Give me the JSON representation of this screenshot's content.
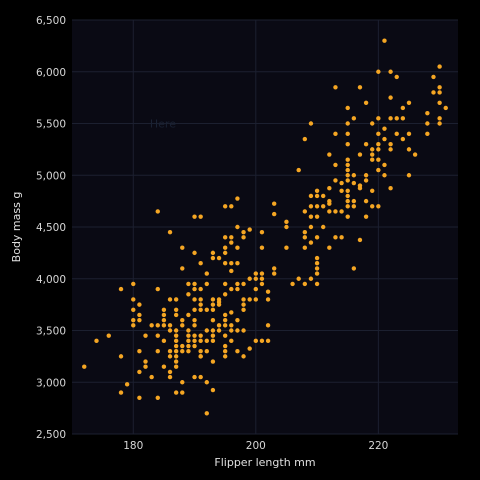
{
  "chart_data": {
    "type": "scatter",
    "title": "",
    "xlabel": "Flipper length mm",
    "ylabel": "Body mass g",
    "xlim": [
      170,
      233
    ],
    "ylim": [
      2500,
      6500
    ],
    "xticks": [
      180,
      200,
      220
    ],
    "yticks": [
      2500,
      3000,
      3500,
      4000,
      4500,
      5000,
      5500,
      6000,
      6500
    ],
    "xtick_labels": [
      "180",
      "200",
      "220"
    ],
    "ytick_labels": [
      "2,500",
      "3,000",
      "3,500",
      "4,000",
      "4,500",
      "5,000",
      "5,500",
      "6,000",
      "6,500"
    ],
    "grid": true,
    "annotation": {
      "text": "Here",
      "x": 185,
      "y": 5500
    },
    "colors": {
      "background": "#000000",
      "plot_background": "#0a0a14",
      "grid": "#1c2030",
      "point": "#f5a623"
    },
    "points": [
      [
        172,
        3150
      ],
      [
        174,
        3400
      ],
      [
        176,
        3450
      ],
      [
        178,
        3250
      ],
      [
        178,
        3900
      ],
      [
        178,
        2900
      ],
      [
        179,
        2980
      ],
      [
        180,
        3950
      ],
      [
        180,
        3800
      ],
      [
        180,
        3700
      ],
      [
        180,
        3600
      ],
      [
        180,
        3550
      ],
      [
        181,
        3750
      ],
      [
        181,
        3650
      ],
      [
        181,
        3600
      ],
      [
        181,
        3300
      ],
      [
        181,
        3100
      ],
      [
        181,
        2850
      ],
      [
        182,
        3200
      ],
      [
        182,
        3450
      ],
      [
        182,
        3150
      ],
      [
        183,
        3550
      ],
      [
        183,
        3050
      ],
      [
        184,
        3550
      ],
      [
        184,
        4650
      ],
      [
        184,
        3900
      ],
      [
        184,
        3450
      ],
      [
        184,
        2850
      ],
      [
        184,
        3300
      ],
      [
        185,
        3650
      ],
      [
        185,
        3550
      ],
      [
        185,
        3700
      ],
      [
        185,
        3600
      ],
      [
        185,
        3400
      ],
      [
        185,
        3150
      ],
      [
        186,
        4450
      ],
      [
        186,
        3800
      ],
      [
        186,
        3550
      ],
      [
        186,
        3500
      ],
      [
        186,
        3300
      ],
      [
        186,
        3250
      ],
      [
        186,
        3100
      ],
      [
        186,
        3050
      ],
      [
        187,
        3800
      ],
      [
        187,
        3700
      ],
      [
        187,
        3650
      ],
      [
        187,
        3500
      ],
      [
        187,
        3450
      ],
      [
        187,
        3400
      ],
      [
        187,
        3350
      ],
      [
        187,
        3300
      ],
      [
        187,
        3250
      ],
      [
        187,
        3200
      ],
      [
        187,
        3150
      ],
      [
        187,
        2900
      ],
      [
        188,
        4300
      ],
      [
        188,
        3600
      ],
      [
        188,
        3550
      ],
      [
        188,
        3350
      ],
      [
        188,
        3300
      ],
      [
        188,
        3000
      ],
      [
        188,
        4100
      ],
      [
        188,
        2900
      ],
      [
        189,
        3950
      ],
      [
        189,
        3850
      ],
      [
        189,
        3650
      ],
      [
        189,
        3450
      ],
      [
        189,
        3400
      ],
      [
        189,
        3350
      ],
      [
        189,
        3500
      ],
      [
        189,
        3300
      ],
      [
        190,
        4600
      ],
      [
        190,
        4250
      ],
      [
        190,
        3950
      ],
      [
        190,
        3900
      ],
      [
        190,
        3800
      ],
      [
        190,
        3700
      ],
      [
        190,
        3600
      ],
      [
        190,
        3550
      ],
      [
        190,
        3450
      ],
      [
        190,
        3400
      ],
      [
        190,
        3350
      ],
      [
        190,
        3050
      ],
      [
        191,
        4600
      ],
      [
        191,
        4150
      ],
      [
        191,
        3900
      ],
      [
        191,
        3800
      ],
      [
        191,
        3750
      ],
      [
        191,
        3700
      ],
      [
        191,
        3450
      ],
      [
        191,
        3400
      ],
      [
        191,
        3300
      ],
      [
        191,
        3250
      ],
      [
        191,
        3050
      ],
      [
        191,
        3250
      ],
      [
        192,
        4050
      ],
      [
        192,
        3950
      ],
      [
        192,
        3700
      ],
      [
        192,
        3500
      ],
      [
        192,
        3400
      ],
      [
        192,
        3300
      ],
      [
        192,
        3000
      ],
      [
        192,
        2700
      ],
      [
        193,
        4250
      ],
      [
        193,
        4200
      ],
      [
        193,
        3800
      ],
      [
        193,
        3750
      ],
      [
        193,
        3700
      ],
      [
        193,
        3600
      ],
      [
        193,
        3500
      ],
      [
        193,
        3450
      ],
      [
        193,
        3400
      ],
      [
        193,
        3200
      ],
      [
        193,
        2925
      ],
      [
        194,
        4200
      ],
      [
        194,
        3800
      ],
      [
        194,
        3775
      ],
      [
        194,
        3750
      ],
      [
        194,
        3550
      ],
      [
        194,
        3500
      ],
      [
        195,
        4700
      ],
      [
        195,
        4400
      ],
      [
        195,
        4300
      ],
      [
        195,
        4250
      ],
      [
        195,
        4150
      ],
      [
        195,
        3950
      ],
      [
        195,
        3850
      ],
      [
        195,
        3650
      ],
      [
        195,
        3600
      ],
      [
        195,
        3550
      ],
      [
        195,
        3450
      ],
      [
        195,
        3350
      ],
      [
        195,
        3300
      ],
      [
        195,
        3250
      ],
      [
        196,
        4700
      ],
      [
        196,
        4400
      ],
      [
        196,
        4350
      ],
      [
        196,
        4150
      ],
      [
        196,
        4075
      ],
      [
        196,
        3900
      ],
      [
        196,
        3675
      ],
      [
        196,
        3550
      ],
      [
        196,
        3500
      ],
      [
        196,
        3400
      ],
      [
        197,
        4775
      ],
      [
        197,
        4500
      ],
      [
        197,
        4300
      ],
      [
        197,
        4150
      ],
      [
        197,
        3950
      ],
      [
        197,
        3900
      ],
      [
        197,
        3600
      ],
      [
        197,
        3500
      ],
      [
        197,
        3300
      ],
      [
        198,
        4450
      ],
      [
        198,
        4400
      ],
      [
        198,
        3950
      ],
      [
        198,
        3800
      ],
      [
        198,
        3750
      ],
      [
        198,
        3700
      ],
      [
        198,
        3500
      ],
      [
        198,
        3250
      ],
      [
        199,
        4475
      ],
      [
        199,
        4000
      ],
      [
        199,
        3800
      ],
      [
        199,
        3325
      ],
      [
        200,
        4050
      ],
      [
        200,
        4000
      ],
      [
        200,
        3900
      ],
      [
        200,
        3800
      ],
      [
        200,
        3400
      ],
      [
        201,
        4450
      ],
      [
        201,
        4300
      ],
      [
        201,
        4050
      ],
      [
        201,
        4000
      ],
      [
        201,
        3950
      ],
      [
        201,
        3400
      ],
      [
        202,
        3875
      ],
      [
        202,
        3800
      ],
      [
        202,
        3550
      ],
      [
        202,
        3400
      ],
      [
        203,
        4725
      ],
      [
        203,
        4625
      ],
      [
        203,
        4100
      ],
      [
        203,
        4050
      ],
      [
        205,
        4550
      ],
      [
        205,
        4500
      ],
      [
        205,
        4300
      ],
      [
        206,
        3950
      ],
      [
        207,
        5050
      ],
      [
        207,
        4000
      ],
      [
        208,
        5350
      ],
      [
        208,
        4650
      ],
      [
        208,
        4450
      ],
      [
        208,
        4400
      ],
      [
        208,
        4300
      ],
      [
        208,
        3950
      ],
      [
        209,
        5500
      ],
      [
        209,
        4800
      ],
      [
        209,
        4700
      ],
      [
        209,
        4600
      ],
      [
        209,
        4500
      ],
      [
        209,
        4350
      ],
      [
        209,
        4000
      ],
      [
        210,
        4850
      ],
      [
        210,
        4800
      ],
      [
        210,
        4700
      ],
      [
        210,
        4600
      ],
      [
        210,
        4400
      ],
      [
        210,
        4200
      ],
      [
        210,
        4150
      ],
      [
        210,
        4100
      ],
      [
        210,
        4050
      ],
      [
        210,
        3950
      ],
      [
        211,
        4800
      ],
      [
        211,
        4700
      ],
      [
        211,
        4500
      ],
      [
        212,
        5200
      ],
      [
        212,
        4875
      ],
      [
        212,
        4750
      ],
      [
        212,
        4725
      ],
      [
        212,
        4650
      ],
      [
        212,
        4300
      ],
      [
        213,
        5850
      ],
      [
        213,
        5400
      ],
      [
        213,
        5100
      ],
      [
        213,
        4950
      ],
      [
        213,
        4650
      ],
      [
        213,
        4400
      ],
      [
        214,
        4925
      ],
      [
        214,
        4850
      ],
      [
        214,
        4650
      ],
      [
        214,
        4400
      ],
      [
        215,
        5650
      ],
      [
        215,
        5500
      ],
      [
        215,
        5400
      ],
      [
        215,
        5300
      ],
      [
        215,
        5150
      ],
      [
        215,
        5100
      ],
      [
        215,
        5050
      ],
      [
        215,
        5000
      ],
      [
        215,
        4950
      ],
      [
        215,
        4850
      ],
      [
        215,
        4800
      ],
      [
        215,
        4750
      ],
      [
        215,
        4700
      ],
      [
        215,
        4600
      ],
      [
        216,
        5550
      ],
      [
        216,
        5000
      ],
      [
        216,
        4925
      ],
      [
        216,
        4750
      ],
      [
        216,
        4700
      ],
      [
        216,
        4100
      ],
      [
        217,
        5850
      ],
      [
        217,
        5200
      ],
      [
        217,
        4900
      ],
      [
        217,
        4875
      ],
      [
        217,
        4375
      ],
      [
        218,
        5700
      ],
      [
        218,
        5300
      ],
      [
        218,
        5000
      ],
      [
        218,
        4950
      ],
      [
        218,
        4750
      ],
      [
        218,
        4600
      ],
      [
        219,
        5500
      ],
      [
        219,
        5250
      ],
      [
        219,
        5200
      ],
      [
        219,
        5150
      ],
      [
        219,
        4850
      ],
      [
        219,
        4700
      ],
      [
        220,
        6000
      ],
      [
        220,
        5550
      ],
      [
        220,
        5400
      ],
      [
        220,
        5300
      ],
      [
        220,
        5250
      ],
      [
        220,
        5150
      ],
      [
        220,
        5050
      ],
      [
        220,
        4700
      ],
      [
        221,
        6300
      ],
      [
        221,
        5450
      ],
      [
        221,
        5350
      ],
      [
        221,
        5100
      ],
      [
        221,
        5000
      ],
      [
        222,
        6000
      ],
      [
        222,
        5750
      ],
      [
        222,
        5550
      ],
      [
        222,
        5300
      ],
      [
        222,
        5250
      ],
      [
        222,
        4875
      ],
      [
        223,
        5950
      ],
      [
        223,
        5550
      ],
      [
        223,
        5400
      ],
      [
        224,
        5650
      ],
      [
        224,
        5550
      ],
      [
        224,
        5350
      ],
      [
        225,
        5700
      ],
      [
        225,
        5400
      ],
      [
        225,
        5250
      ],
      [
        225,
        5000
      ],
      [
        226,
        5200
      ],
      [
        228,
        5600
      ],
      [
        228,
        5500
      ],
      [
        228,
        5400
      ],
      [
        229,
        5950
      ],
      [
        229,
        5800
      ],
      [
        230,
        6050
      ],
      [
        230,
        5850
      ],
      [
        230,
        5800
      ],
      [
        230,
        5700
      ],
      [
        230,
        5550
      ],
      [
        230,
        5500
      ],
      [
        231,
        5650
      ]
    ]
  }
}
